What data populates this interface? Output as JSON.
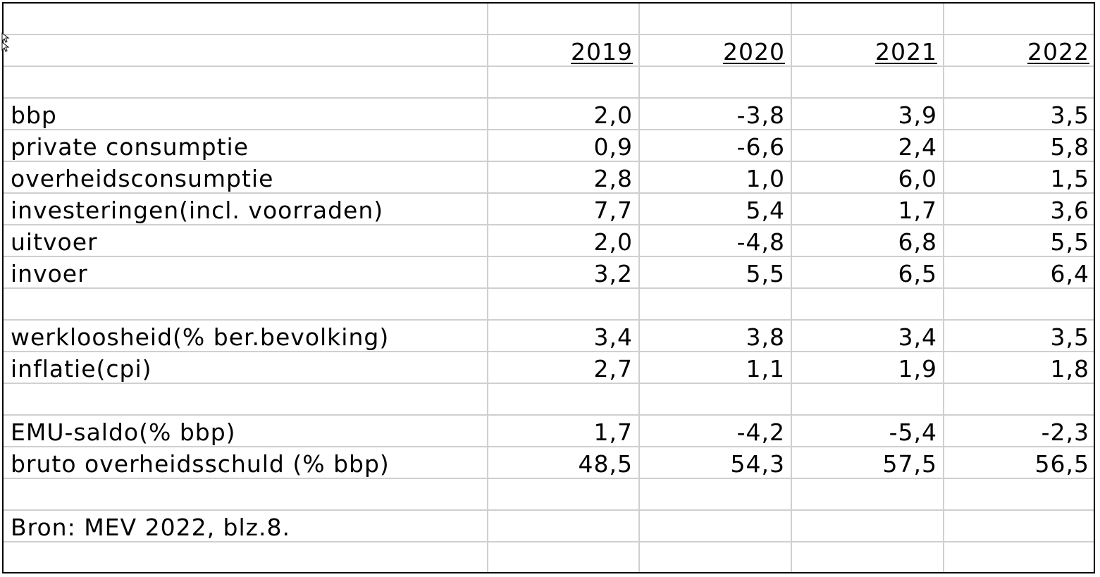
{
  "table": {
    "years": [
      "2019",
      "2020",
      "2021",
      "2022"
    ],
    "rows": [
      {
        "label": "bbp",
        "values": [
          "2,0",
          "-3,8",
          "3,9",
          "3,5"
        ]
      },
      {
        "label": "private consumptie",
        "values": [
          "0,9",
          "-6,6",
          "2,4",
          "5,8"
        ]
      },
      {
        "label": "overheidsconsumptie",
        "values": [
          "2,8",
          "1,0",
          "6,0",
          "1,5"
        ]
      },
      {
        "label": "investeringen(incl. voorraden)",
        "values": [
          "7,7",
          "5,4",
          "1,7",
          "3,6"
        ]
      },
      {
        "label": "uitvoer",
        "values": [
          "2,0",
          "-4,8",
          "6,8",
          "5,5"
        ]
      },
      {
        "label": "invoer",
        "values": [
          "3,2",
          "5,5",
          "6,5",
          "6,4"
        ]
      },
      {
        "label": "werkloosheid(% ber.bevolking)",
        "values": [
          "3,4",
          "3,8",
          "3,4",
          "3,5"
        ]
      },
      {
        "label": "inflatie(cpi)",
        "values": [
          "2,7",
          "1,1",
          "1,9",
          "1,8"
        ]
      },
      {
        "label": "EMU-saldo(% bbp)",
        "values": [
          "1,7",
          "-4,2",
          "-5,4",
          "-2,3"
        ]
      },
      {
        "label": "bruto overheidsschuld (% bbp)",
        "values": [
          "48,5",
          "54,3",
          "57,5",
          "56,5"
        ]
      }
    ],
    "source": "Bron: MEV 2022, blz.8."
  },
  "icons": {
    "cursor": "mouse-pointer-icon"
  },
  "colors": {
    "gridline": "#cfcfcf",
    "border": "#000000",
    "text": "#000000"
  }
}
